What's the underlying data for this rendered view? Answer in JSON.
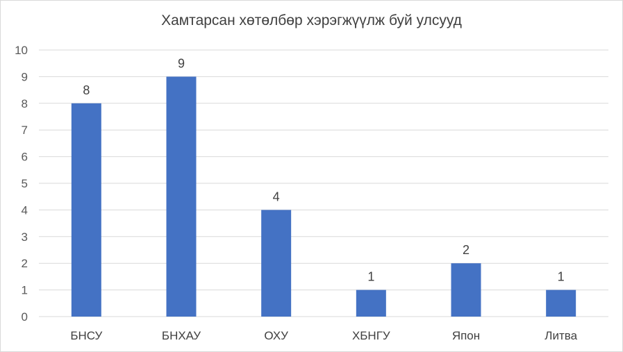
{
  "chart_data": {
    "type": "bar",
    "title": "Хамтарсан хөтөлбөр хэрэгжүүлж буй улсууд",
    "categories": [
      "БНСУ",
      "БНХАУ",
      "ОХУ",
      "ХБНГУ",
      "Япон",
      "Литва"
    ],
    "values": [
      8,
      9,
      4,
      1,
      2,
      1
    ],
    "ylim": [
      0,
      10
    ],
    "yticks": [
      0,
      1,
      2,
      3,
      4,
      5,
      6,
      7,
      8,
      9,
      10
    ],
    "grid": true,
    "bar_color": "#4472c4",
    "grid_color": "#d9d9d9",
    "data_labels": true
  }
}
